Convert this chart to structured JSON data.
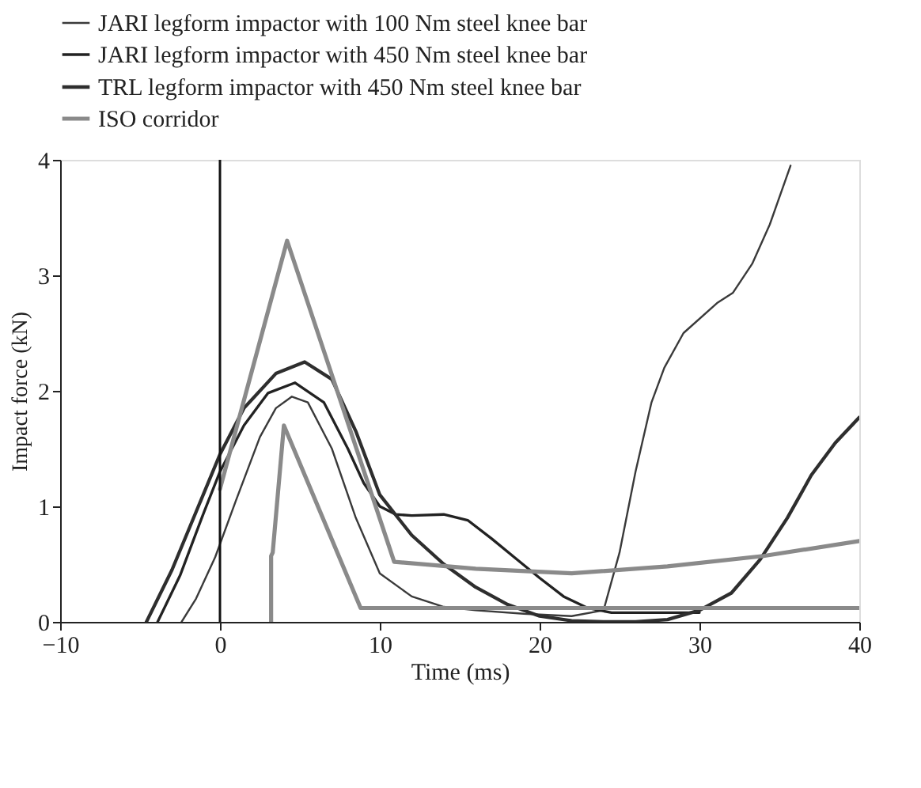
{
  "chart_data": {
    "type": "line",
    "xlabel": "Time (ms)",
    "ylabel": "Impact force (kN)",
    "xlim": [
      -10,
      40
    ],
    "xticks": [
      -10,
      0,
      10,
      20,
      30,
      40
    ],
    "ylim": [
      0,
      4
    ],
    "yticks": [
      0,
      1,
      2,
      3,
      4
    ],
    "grid": false,
    "legend": "top",
    "marker": "none",
    "line_style": "solid",
    "ref_lines": [
      {
        "axis": "x",
        "value": 0,
        "color": "#111111"
      }
    ],
    "series": [
      {
        "name": "JARI legform impactor with 100 Nm steel knee bar",
        "color": "#3a3a3a",
        "x": [
          -2.4,
          -1.5,
          -0.3,
          1,
          2.5,
          3.5,
          4.5,
          5.5,
          7,
          8.5,
          10,
          12,
          14,
          16,
          19,
          22,
          24,
          25,
          26,
          27,
          27.8,
          29,
          31.1,
          32.1,
          33.3,
          34.4,
          35.7
        ],
        "values": [
          0,
          0.2,
          0.56,
          1.05,
          1.6,
          1.85,
          1.95,
          1.9,
          1.5,
          0.9,
          0.42,
          0.22,
          0.13,
          0.1,
          0.07,
          0.05,
          0.1,
          0.6,
          1.3,
          1.9,
          2.2,
          2.5,
          2.76,
          2.85,
          3.1,
          3.44,
          3.95
        ]
      },
      {
        "name": "JARI legform impactor with 450 Nm steel knee bar",
        "color": "#222222",
        "x": [
          -3.9,
          -2.5,
          -1,
          0,
          1.5,
          3,
          4.7,
          6.5,
          8,
          9,
          10,
          11,
          12,
          14,
          15.5,
          17,
          18.5,
          20,
          21.5,
          23,
          24.5,
          27,
          30
        ],
        "values": [
          0,
          0.4,
          0.95,
          1.3,
          1.7,
          1.98,
          2.07,
          1.9,
          1.5,
          1.2,
          1.0,
          0.93,
          0.92,
          0.93,
          0.88,
          0.72,
          0.55,
          0.38,
          0.22,
          0.12,
          0.08,
          0.08,
          0.08
        ]
      },
      {
        "name": "TRL legform impactor with 450 Nm steel knee bar",
        "color": "#2e2e2e",
        "x": [
          -4.6,
          -3,
          -1.5,
          0,
          1.5,
          3.5,
          5.3,
          7,
          8.5,
          10,
          12,
          14,
          16,
          18,
          20,
          22,
          24,
          26,
          28,
          30,
          32,
          33.8,
          35.5,
          37,
          38.5,
          40
        ],
        "values": [
          0,
          0.45,
          0.95,
          1.45,
          1.85,
          2.15,
          2.25,
          2.1,
          1.65,
          1.1,
          0.75,
          0.5,
          0.3,
          0.15,
          0.05,
          0.01,
          0,
          0,
          0.02,
          0.1,
          0.25,
          0.54,
          0.9,
          1.27,
          1.55,
          1.77
        ]
      },
      {
        "name": "ISO corridor",
        "color": "#8a8a8a",
        "x": [
          0,
          4.2,
          10.9,
          16,
          22,
          28,
          34,
          40,
          null,
          3.2,
          3.2,
          3.3,
          4.0,
          8.8,
          40
        ],
        "values": [
          1.15,
          3.3,
          0.52,
          0.46,
          0.42,
          0.48,
          0.57,
          0.7,
          null,
          0,
          0.57,
          0.6,
          1.7,
          0.12,
          0.12
        ]
      }
    ]
  }
}
